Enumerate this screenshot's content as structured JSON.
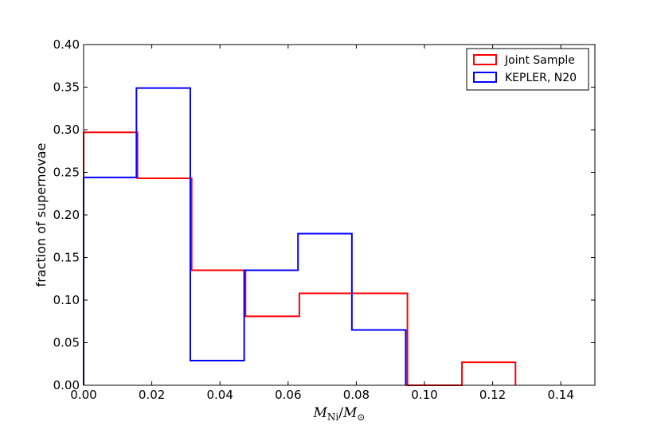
{
  "chart_data": {
    "type": "histogram",
    "xlabel": {
      "main": "M",
      "sub1": "Ni",
      "slash": "/",
      "main2": "M",
      "sub2": "⊙"
    },
    "ylabel": "fraction of supernovae",
    "xlim": [
      0.0,
      0.15
    ],
    "ylim": [
      0.0,
      0.4
    ],
    "x_ticks": [
      "0.00",
      "0.02",
      "0.04",
      "0.06",
      "0.08",
      "0.10",
      "0.12",
      "0.14"
    ],
    "x_tick_values": [
      0.0,
      0.02,
      0.04,
      0.06,
      0.08,
      0.1,
      0.12,
      0.14
    ],
    "y_ticks": [
      "0.00",
      "0.05",
      "0.10",
      "0.15",
      "0.20",
      "0.25",
      "0.30",
      "0.35",
      "0.40"
    ],
    "y_tick_values": [
      0.0,
      0.05,
      0.1,
      0.15,
      0.2,
      0.25,
      0.3,
      0.35,
      0.4
    ],
    "legend_position": "top-right",
    "grid": false,
    "series": [
      {
        "name": "Joint Sample",
        "color": "#ff0000",
        "bin_edges": [
          0.0,
          0.0158,
          0.0317,
          0.0475,
          0.0633,
          0.0792,
          0.095,
          0.111,
          0.1267
        ],
        "values": [
          0.297,
          0.243,
          0.135,
          0.081,
          0.108,
          0.108,
          0.0,
          0.027
        ]
      },
      {
        "name": "KEPLER, N20",
        "color": "#0000ff",
        "bin_edges": [
          0.0,
          0.0155,
          0.0313,
          0.0471,
          0.0629,
          0.0787,
          0.0945
        ],
        "values": [
          0.244,
          0.349,
          0.029,
          0.135,
          0.178,
          0.065
        ]
      }
    ]
  }
}
